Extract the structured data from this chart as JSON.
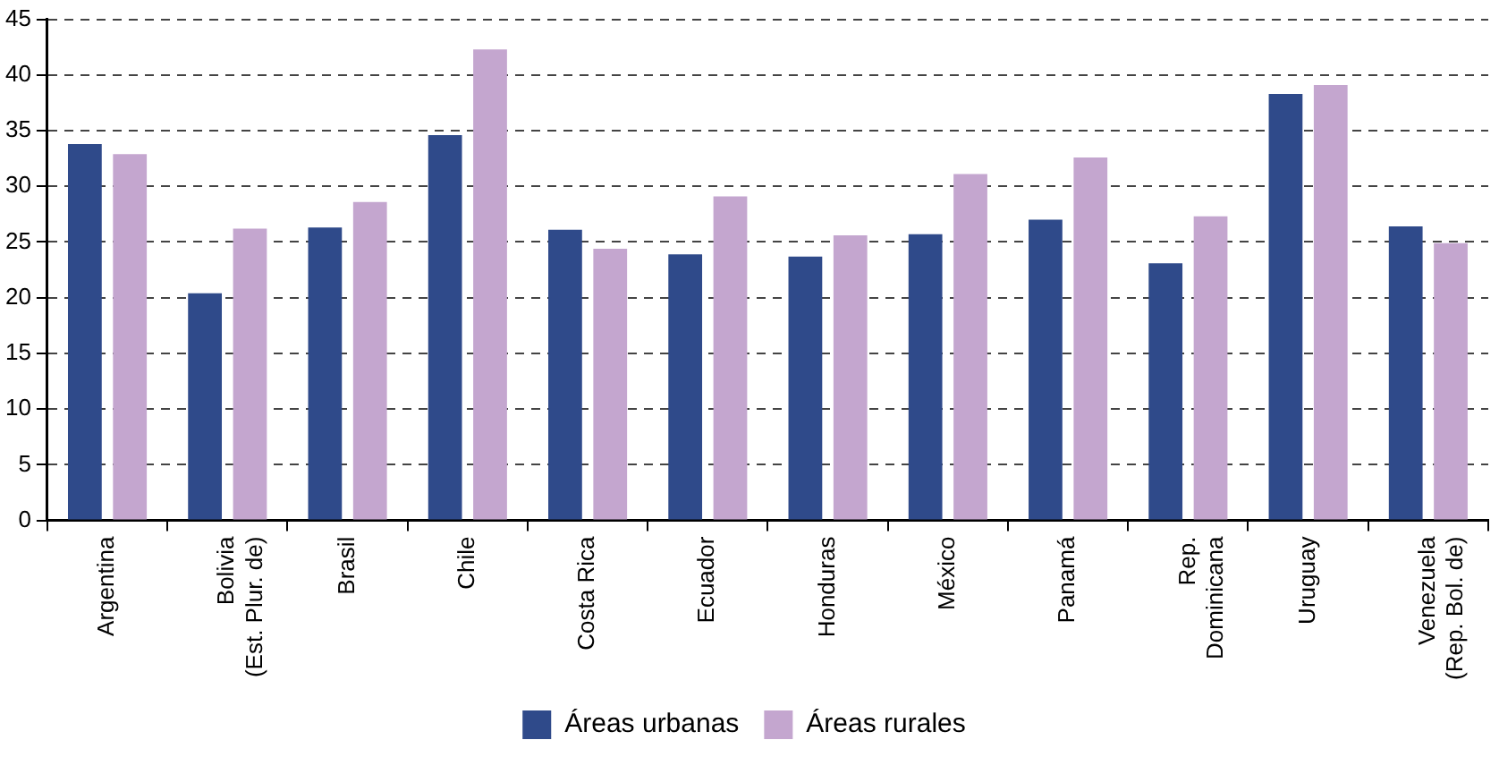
{
  "chart_data": {
    "type": "bar",
    "categories": [
      "Argentina",
      "Bolivia\n(Est. Plur. de)",
      "Brasil",
      "Chile",
      "Costa Rica",
      "Ecuador",
      "Honduras",
      "México",
      "Panamá",
      "Rep.\nDominicana",
      "Uruguay",
      "Venezuela\n(Rep. Bol. de)"
    ],
    "series": [
      {
        "name": "Áreas urbanas",
        "color": "#2f4a8a",
        "values": [
          33.8,
          20.4,
          26.3,
          34.6,
          26.1,
          23.9,
          23.7,
          25.7,
          27.0,
          23.1,
          38.3,
          26.4
        ]
      },
      {
        "name": "Áreas rurales",
        "color": "#c4a6cf",
        "values": [
          32.9,
          26.2,
          28.6,
          42.3,
          24.4,
          29.1,
          25.6,
          31.1,
          32.6,
          27.3,
          39.1,
          24.9
        ]
      }
    ],
    "ylim": [
      0,
      45
    ],
    "yticks": [
      0,
      5,
      10,
      15,
      20,
      25,
      30,
      35,
      40,
      45
    ],
    "grid": "y",
    "legend": "bottom"
  }
}
